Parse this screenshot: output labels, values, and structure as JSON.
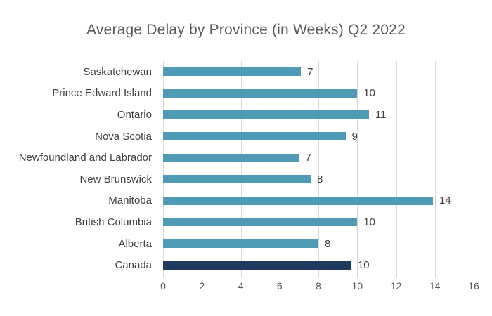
{
  "chart_data": {
    "type": "bar",
    "orientation": "horizontal",
    "title": "Average Delay by Province (in Weeks) Q2 2022",
    "categories": [
      "Saskatchewan",
      "Prince Edward Island",
      "Ontario",
      "Nova Scotia",
      "Newfoundland and Labrador",
      "New Brunswick",
      "Manitoba",
      "British Columbia",
      "Alberta",
      "Canada"
    ],
    "values": [
      7,
      10,
      11,
      9,
      7,
      8,
      14,
      10,
      8,
      10
    ],
    "bar_extents": [
      7.1,
      10.0,
      10.6,
      9.4,
      7.0,
      7.6,
      13.9,
      10.0,
      8.0,
      9.7
    ],
    "highlight_category": "Canada",
    "xlim": [
      0,
      16
    ],
    "xticks": [
      0,
      2,
      4,
      6,
      8,
      10,
      12,
      14,
      16
    ],
    "grid": "vertical-gridlines",
    "legend": "none",
    "data_labels": "outside-end",
    "colors": {
      "bar": "#4f9ab5",
      "highlight_bar": "#1f3a5f",
      "gridline": "#d9d9d9",
      "title_text": "#595959",
      "axis_text": "#595959",
      "label_text": "#404040"
    }
  }
}
